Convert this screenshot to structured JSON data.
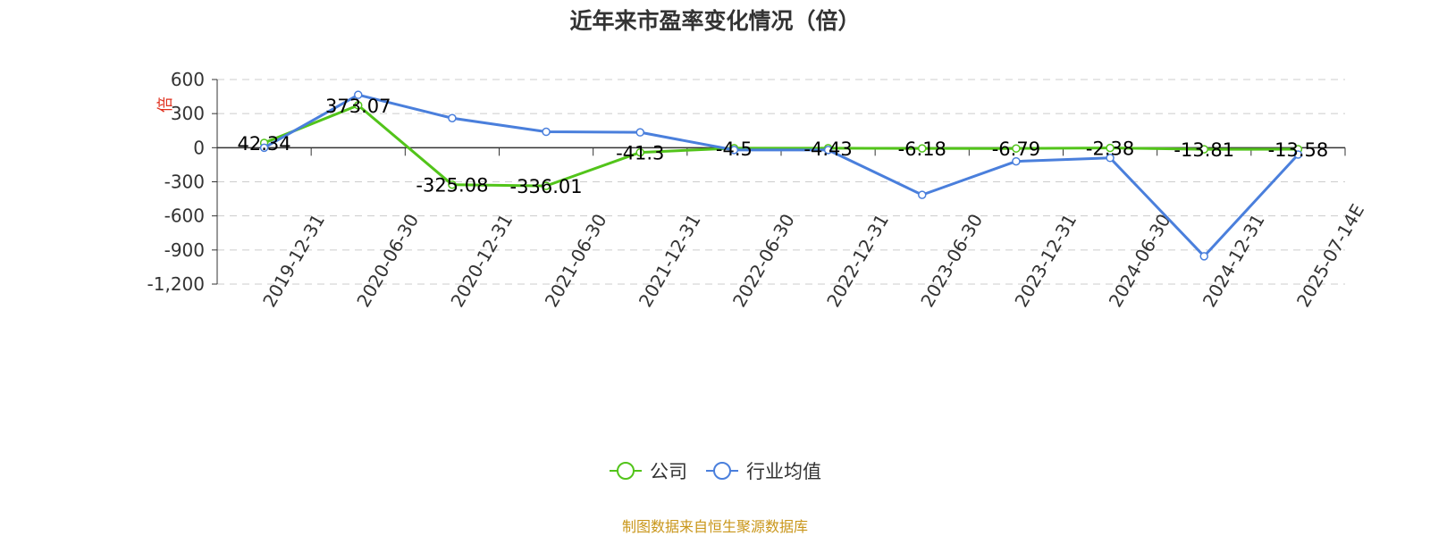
{
  "chart_data": {
    "type": "line",
    "title": "近年来市盈率变化情况（倍）",
    "ylabel": "倍",
    "ylim": [
      -1200,
      600
    ],
    "yticks": [
      "600",
      "300",
      "0",
      "-300",
      "-600",
      "-900",
      "-1,200"
    ],
    "categories": [
      "2019-12-31",
      "2020-06-30",
      "2020-12-31",
      "2021-06-30",
      "2021-12-31",
      "2022-06-30",
      "2022-12-31",
      "2023-06-30",
      "2023-12-31",
      "2024-06-30",
      "2024-12-31",
      "2025-07-14E"
    ],
    "series": [
      {
        "name": "公司",
        "color": "#52c41a",
        "values": [
          42.34,
          373.07,
          -325.08,
          -336.01,
          -41.3,
          -4.5,
          -4.43,
          -6.18,
          -6.79,
          -2.38,
          -13.81,
          -13.58
        ],
        "labels": [
          "42.34",
          "373.07",
          "-325.08",
          "-336.01",
          "-41.3",
          "-4.5",
          "-4.43",
          "-6.18",
          "-6.79",
          "-2.38",
          "-13.81",
          "-13.58"
        ]
      },
      {
        "name": "行业均值",
        "color": "#4a7fdc",
        "values": [
          0,
          465,
          260,
          140,
          135,
          -20,
          -20,
          -415,
          -120,
          -90,
          -955,
          -60
        ]
      }
    ],
    "grid": true,
    "legend_position": "bottom-center"
  },
  "footer": {
    "source": "制图数据来自恒生聚源数据库"
  }
}
